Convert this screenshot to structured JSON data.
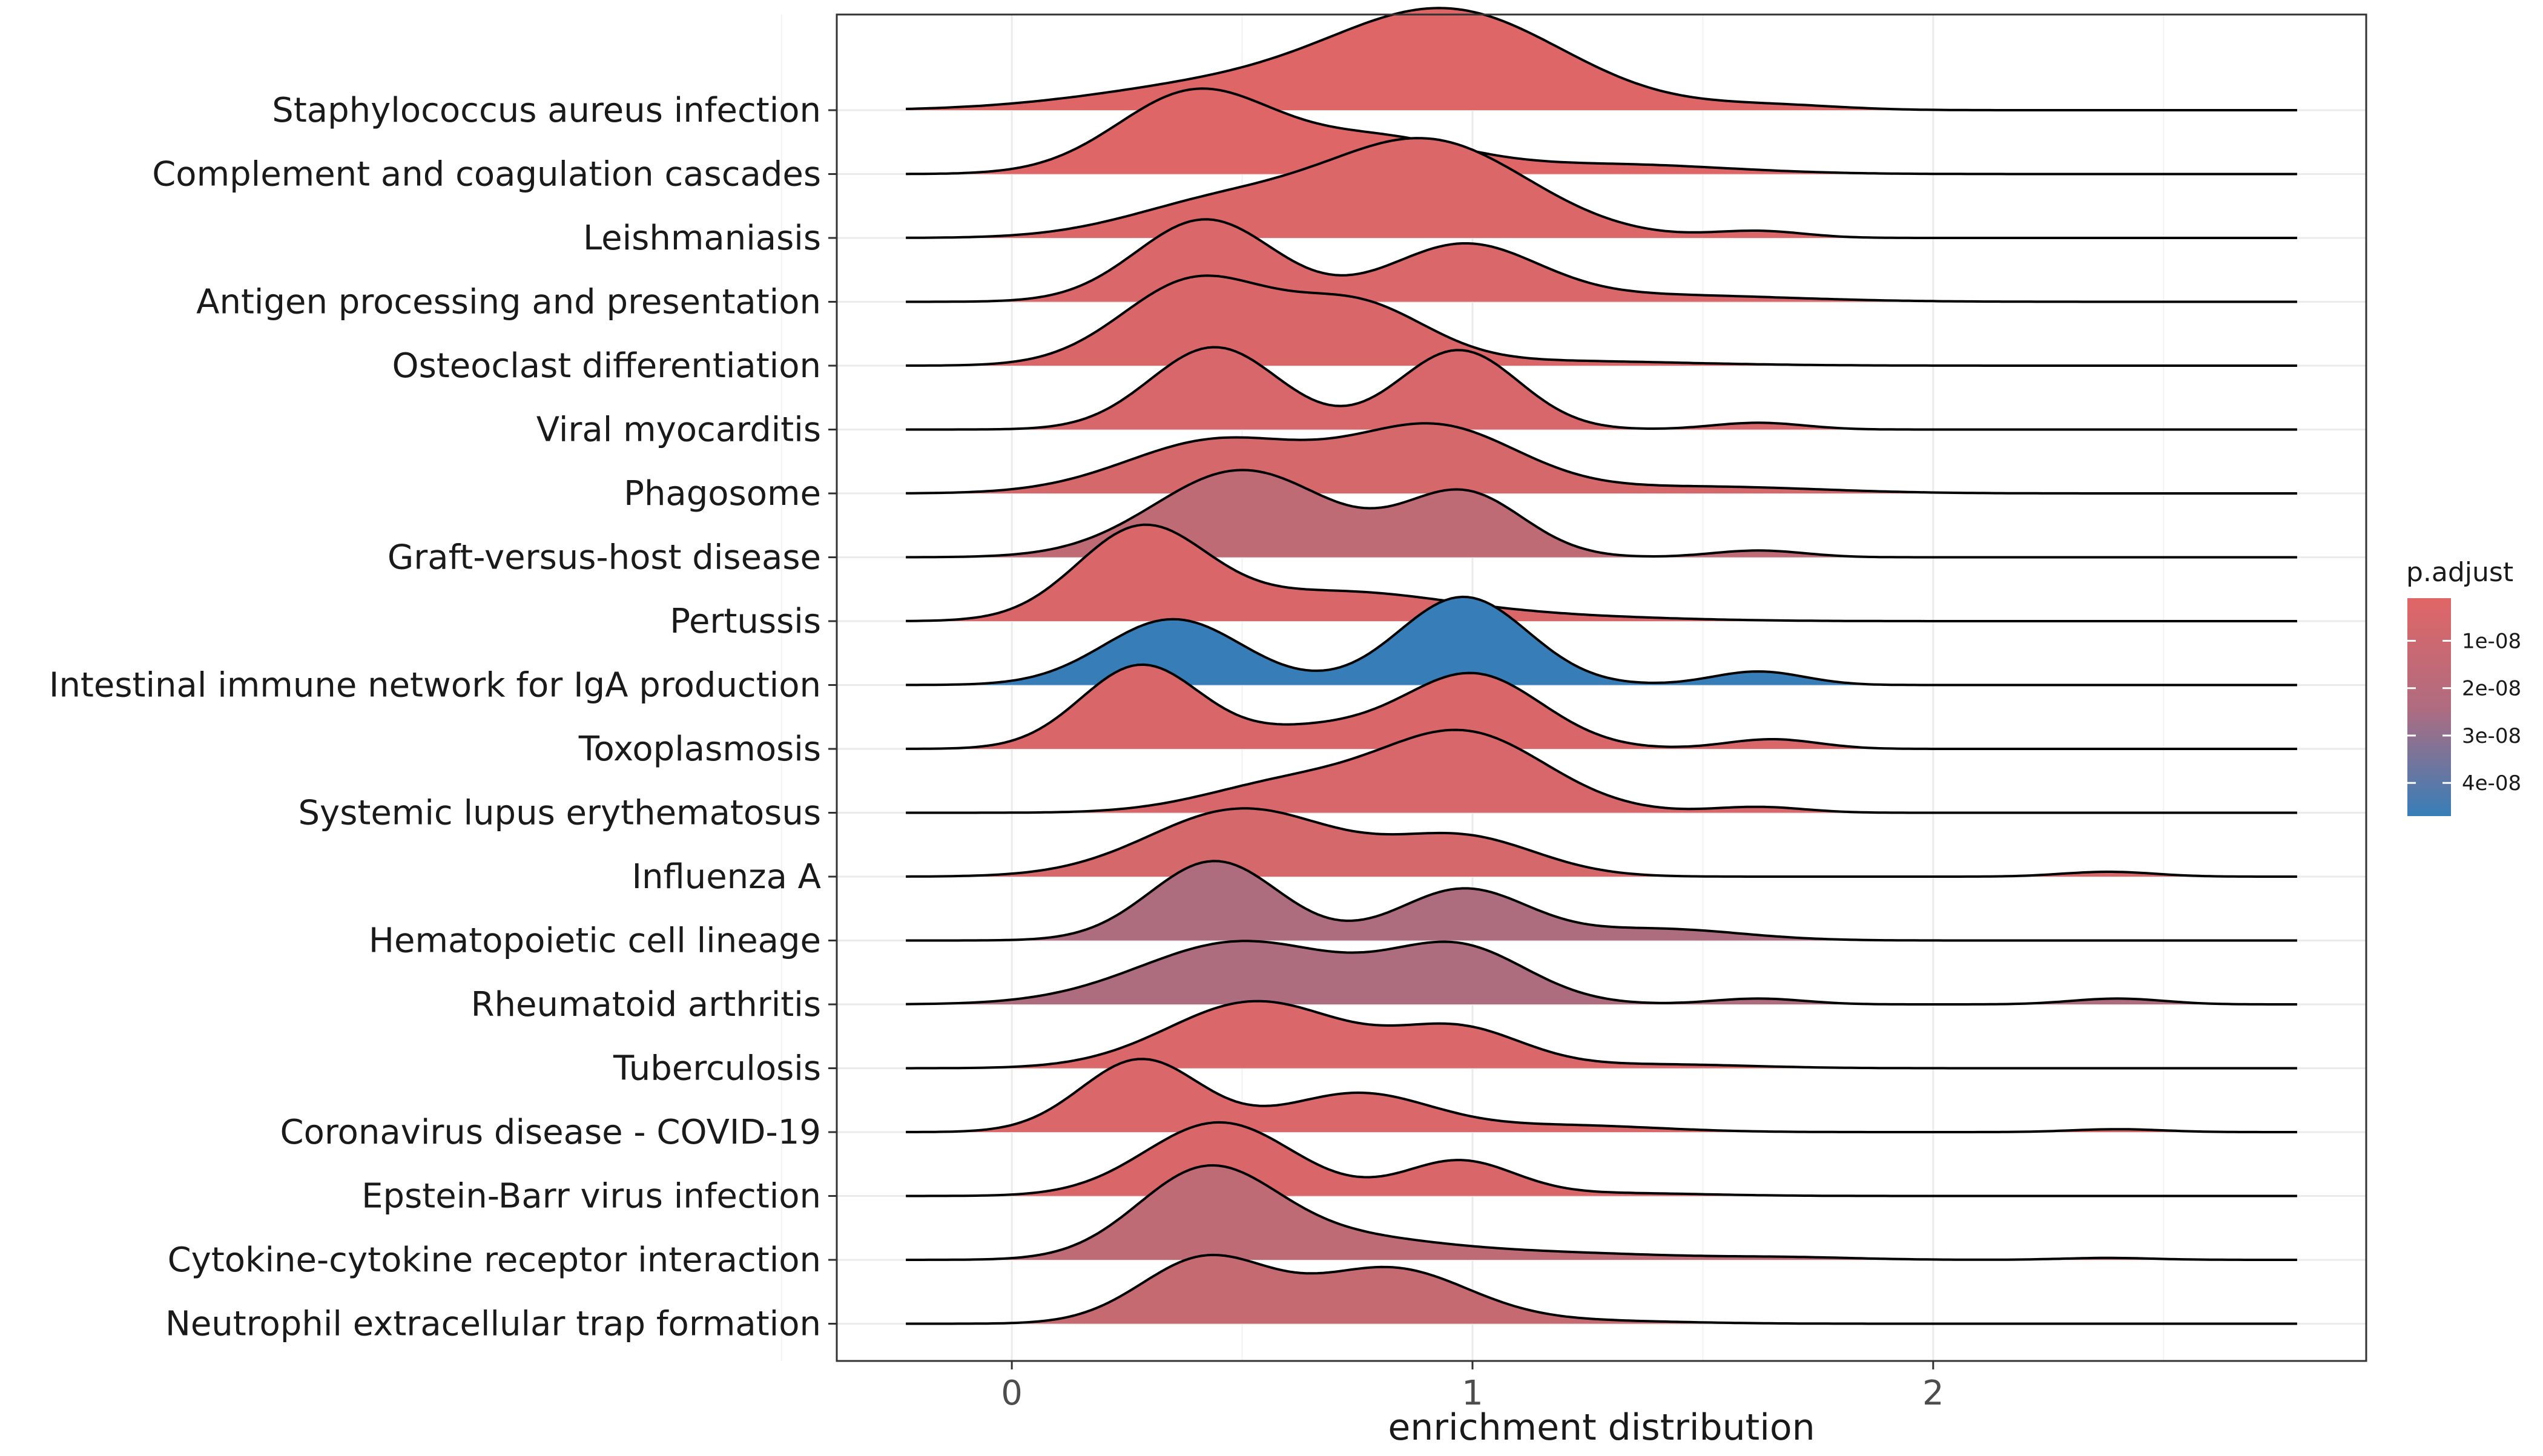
{
  "chart_data": {
    "type": "ridgeline",
    "xlabel": "enrichment distribution",
    "xlim": [
      -0.38,
      2.94
    ],
    "x_ticks": [
      0,
      1,
      2
    ],
    "x_minor_ticks": [
      -0.5,
      0.5,
      1.5,
      2.5
    ],
    "density_range": [
      -0.23,
      2.79
    ],
    "grid": true,
    "legend": {
      "title": "p.adjust",
      "position": "right",
      "gradient": {
        "low_color": "#e06666",
        "high_color": "#377eb8",
        "min": 1e-09,
        "max": 4.7e-08
      },
      "ticks": [
        {
          "value": 1e-08,
          "label": "1e-08"
        },
        {
          "value": 2e-08,
          "label": "2e-08"
        },
        {
          "value": 3e-08,
          "label": "3e-08"
        },
        {
          "value": 4e-08,
          "label": "4e-08"
        }
      ]
    },
    "series": [
      {
        "name": "Staphylococcus aureus infection",
        "p_adjust": 1.2e-09,
        "peaks": [
          [
            0.45,
            0.25,
            0.28
          ],
          [
            0.95,
            1.0,
            0.25
          ],
          [
            1.65,
            0.05,
            0.15
          ]
        ]
      },
      {
        "name": "Complement and coagulation cascades",
        "p_adjust": 1.2e-09,
        "peaks": [
          [
            0.4,
            0.85,
            0.17
          ],
          [
            0.8,
            0.35,
            0.18
          ],
          [
            1.3,
            0.1,
            0.25
          ]
        ]
      },
      {
        "name": "Leishmaniasis",
        "p_adjust": 2e-09,
        "peaks": [
          [
            0.45,
            0.35,
            0.2
          ],
          [
            0.9,
            1.0,
            0.22
          ],
          [
            1.62,
            0.07,
            0.1
          ]
        ]
      },
      {
        "name": "Antigen processing and presentation",
        "p_adjust": 2.5e-09,
        "peaks": [
          [
            0.42,
            0.85,
            0.15
          ],
          [
            0.98,
            0.58,
            0.16
          ],
          [
            1.4,
            0.07,
            0.28
          ]
        ]
      },
      {
        "name": "Osteoclast differentiation",
        "p_adjust": 3e-09,
        "peaks": [
          [
            0.4,
            0.88,
            0.16
          ],
          [
            0.75,
            0.6,
            0.15
          ],
          [
            1.15,
            0.05,
            0.3
          ]
        ]
      },
      {
        "name": "Viral myocarditis",
        "p_adjust": 3.5e-09,
        "peaks": [
          [
            0.44,
            0.85,
            0.14
          ],
          [
            0.97,
            0.82,
            0.13
          ],
          [
            1.62,
            0.07,
            0.1
          ]
        ]
      },
      {
        "name": "Phagosome",
        "p_adjust": 4e-09,
        "peaks": [
          [
            0.45,
            0.55,
            0.2
          ],
          [
            0.92,
            0.68,
            0.18
          ],
          [
            1.5,
            0.07,
            0.25
          ]
        ]
      },
      {
        "name": "Graft-versus-host disease",
        "p_adjust": 1e-08,
        "peaks": [
          [
            0.5,
            0.9,
            0.19
          ],
          [
            0.98,
            0.66,
            0.13
          ],
          [
            1.62,
            0.07,
            0.1
          ]
        ]
      },
      {
        "name": "Pertussis",
        "p_adjust": 3e-09,
        "peaks": [
          [
            0.28,
            0.92,
            0.14
          ],
          [
            0.7,
            0.3,
            0.25
          ],
          [
            1.2,
            0.04,
            0.25
          ]
        ]
      },
      {
        "name": "Intestinal immune network for IgA production",
        "p_adjust": 4.7e-08,
        "peaks": [
          [
            0.35,
            0.68,
            0.15
          ],
          [
            0.98,
            0.91,
            0.14
          ],
          [
            1.62,
            0.14,
            0.1
          ]
        ]
      },
      {
        "name": "Toxoplasmosis",
        "p_adjust": 3e-09,
        "peaks": [
          [
            0.28,
            0.86,
            0.13
          ],
          [
            1.0,
            0.77,
            0.15
          ],
          [
            0.65,
            0.2,
            0.15
          ],
          [
            1.65,
            0.1,
            0.1
          ]
        ]
      },
      {
        "name": "Systemic lupus erythematosus",
        "p_adjust": 3.5e-09,
        "peaks": [
          [
            0.6,
            0.3,
            0.18
          ],
          [
            0.98,
            0.82,
            0.18
          ],
          [
            1.62,
            0.06,
            0.1
          ]
        ]
      },
      {
        "name": "Influenza A",
        "p_adjust": 4e-09,
        "peaks": [
          [
            0.5,
            0.7,
            0.2
          ],
          [
            0.98,
            0.4,
            0.16
          ],
          [
            2.38,
            0.05,
            0.1
          ]
        ]
      },
      {
        "name": "Hematopoietic cell lineage",
        "p_adjust": 1.5e-08,
        "peaks": [
          [
            0.44,
            0.82,
            0.14
          ],
          [
            0.98,
            0.53,
            0.14
          ],
          [
            1.4,
            0.12,
            0.18
          ]
        ]
      },
      {
        "name": "Rheumatoid arthritis",
        "p_adjust": 1.5e-08,
        "peaks": [
          [
            0.5,
            0.65,
            0.22
          ],
          [
            0.97,
            0.57,
            0.15
          ],
          [
            1.62,
            0.06,
            0.1
          ],
          [
            2.4,
            0.06,
            0.1
          ]
        ]
      },
      {
        "name": "Tuberculosis",
        "p_adjust": 2.5e-09,
        "peaks": [
          [
            0.53,
            0.69,
            0.19
          ],
          [
            0.97,
            0.4,
            0.14
          ],
          [
            1.4,
            0.04,
            0.2
          ]
        ]
      },
      {
        "name": "Coronavirus disease - COVID-19",
        "p_adjust": 2.5e-09,
        "peaks": [
          [
            0.28,
            0.75,
            0.13
          ],
          [
            0.75,
            0.4,
            0.16
          ],
          [
            1.2,
            0.07,
            0.2
          ],
          [
            2.4,
            0.03,
            0.1
          ]
        ]
      },
      {
        "name": "Epstein-Barr virus infection",
        "p_adjust": 3e-09,
        "peaks": [
          [
            0.45,
            0.76,
            0.16
          ],
          [
            0.97,
            0.36,
            0.12
          ],
          [
            1.3,
            0.03,
            0.2
          ]
        ]
      },
      {
        "name": "Cytokine-cytokine receptor interaction",
        "p_adjust": 1e-08,
        "peaks": [
          [
            0.42,
            0.89,
            0.15
          ],
          [
            0.7,
            0.2,
            0.2
          ],
          [
            1.1,
            0.08,
            0.3
          ],
          [
            1.7,
            0.02,
            0.15
          ],
          [
            2.38,
            0.02,
            0.1
          ]
        ]
      },
      {
        "name": "Neutrophil extracellular trap formation",
        "p_adjust": 8e-09,
        "peaks": [
          [
            0.42,
            0.67,
            0.14
          ],
          [
            0.82,
            0.57,
            0.17
          ],
          [
            1.25,
            0.03,
            0.2
          ]
        ]
      }
    ]
  }
}
